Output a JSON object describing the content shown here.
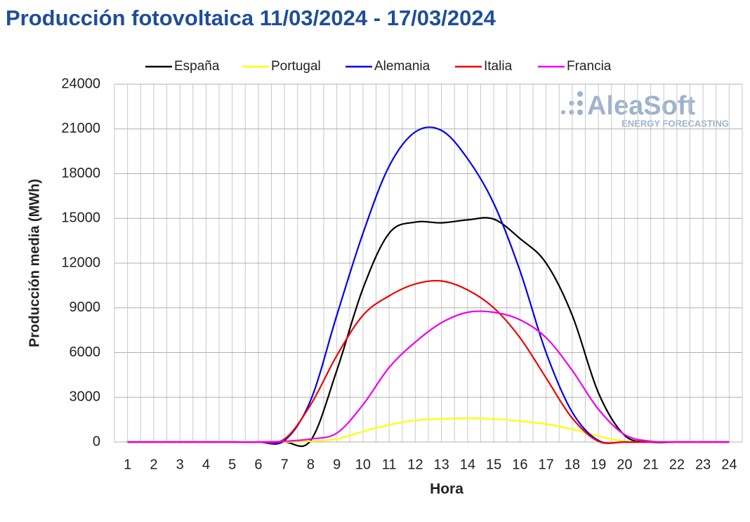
{
  "chart_data": {
    "type": "line",
    "title": "Producción fotovoltaica 11/03/2024 - 17/03/2024",
    "watermark": "AleaSoft",
    "watermark_sub": "ENERGY FORECASTING",
    "xlabel": "Hora",
    "ylabel": "Producción media (MWh)",
    "categories": [
      "1",
      "2",
      "3",
      "4",
      "5",
      "6",
      "7",
      "8",
      "9",
      "10",
      "11",
      "12",
      "13",
      "14",
      "15",
      "16",
      "17",
      "18",
      "19",
      "20",
      "21",
      "22",
      "23",
      "24"
    ],
    "series": [
      {
        "name": "España",
        "color": "#000000",
        "values": [
          0,
          0,
          0,
          0,
          0,
          0,
          0,
          100,
          4800,
          10300,
          14000,
          14750,
          14700,
          14900,
          14950,
          13650,
          12000,
          8500,
          3300,
          450,
          0,
          0,
          0,
          0
        ]
      },
      {
        "name": "Portugal",
        "color": "#ffff00",
        "values": [
          0,
          0,
          0,
          0,
          0,
          0,
          0,
          50,
          200,
          700,
          1150,
          1450,
          1550,
          1600,
          1550,
          1400,
          1200,
          850,
          400,
          50,
          0,
          0,
          0,
          0
        ]
      },
      {
        "name": "Alemania",
        "color": "#0000ee",
        "values": [
          0,
          0,
          0,
          0,
          0,
          0,
          100,
          2800,
          8500,
          14000,
          18500,
          20800,
          20900,
          19000,
          16000,
          11500,
          6000,
          2000,
          100,
          0,
          0,
          0,
          0,
          0
        ]
      },
      {
        "name": "Italia",
        "color": "#ee0000",
        "values": [
          0,
          0,
          0,
          0,
          0,
          0,
          200,
          2500,
          5800,
          8500,
          9800,
          10600,
          10800,
          10200,
          9000,
          7000,
          4300,
          1600,
          50,
          0,
          0,
          0,
          0,
          0
        ]
      },
      {
        "name": "Francia",
        "color": "#ee00ee",
        "values": [
          0,
          0,
          0,
          0,
          0,
          0,
          50,
          200,
          600,
          2500,
          5000,
          6700,
          8000,
          8700,
          8700,
          8200,
          7000,
          4800,
          2200,
          500,
          50,
          0,
          0,
          0
        ]
      }
    ],
    "ylim": [
      0,
      24000
    ],
    "yticks": [
      0,
      3000,
      6000,
      9000,
      12000,
      15000,
      18000,
      21000,
      24000
    ],
    "grid": true,
    "legend": "top"
  }
}
